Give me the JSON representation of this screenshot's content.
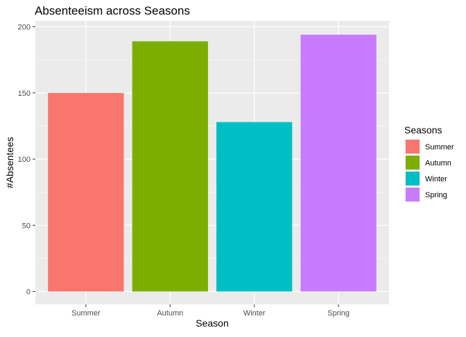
{
  "chart_data": {
    "type": "bar",
    "title": "Absenteeism across Seasons",
    "xlabel": "Season",
    "ylabel": "#Absentees",
    "categories": [
      "Summer",
      "Autumn",
      "Winter",
      "Spring"
    ],
    "values": [
      150,
      189,
      128,
      194
    ],
    "colors": [
      "#F8766D",
      "#7CAE00",
      "#00BFC4",
      "#C77CFF"
    ],
    "ylim": [
      0,
      205
    ],
    "yticks": [
      0,
      50,
      100,
      150,
      200
    ],
    "grid": true,
    "panel_background": "#EBEBEB",
    "legend": {
      "title": "Seasons",
      "position": "right",
      "entries": [
        "Summer",
        "Autumn",
        "Winter",
        "Spring"
      ]
    }
  }
}
